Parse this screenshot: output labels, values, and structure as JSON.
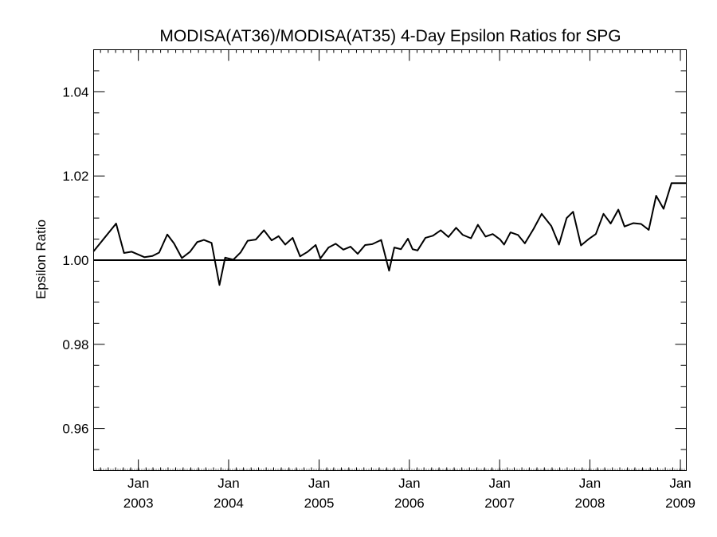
{
  "chart_data": {
    "type": "line",
    "title": "MODISA(AT36)/MODISA(AT35) 4-Day Epsilon Ratios for SPG",
    "xlabel": "",
    "ylabel": "Epsilon Ratio",
    "x_range": [
      "2002-07-04",
      "2009-01-25"
    ],
    "ylim": [
      0.95,
      1.05
    ],
    "y_ticks": [
      {
        "value": 0.96,
        "label": "0.96"
      },
      {
        "value": 0.98,
        "label": "0.98"
      },
      {
        "value": 1.0,
        "label": "1.00"
      },
      {
        "value": 1.02,
        "label": "1.02"
      },
      {
        "value": 1.04,
        "label": "1.04"
      }
    ],
    "x_ticks": [
      {
        "date": "2003-01-01",
        "month": "Jan",
        "year": "2003"
      },
      {
        "date": "2004-01-01",
        "month": "Jan",
        "year": "2004"
      },
      {
        "date": "2005-01-01",
        "month": "Jan",
        "year": "2005"
      },
      {
        "date": "2006-01-01",
        "month": "Jan",
        "year": "2006"
      },
      {
        "date": "2007-01-01",
        "month": "Jan",
        "year": "2007"
      },
      {
        "date": "2008-01-01",
        "month": "Jan",
        "year": "2008"
      },
      {
        "date": "2009-01-01",
        "month": "Jan",
        "year": "2009"
      }
    ],
    "reference_line": 1.0,
    "grid": false,
    "series": [
      {
        "x": [
          "2002-07-04",
          "2002-10-03",
          "2002-11-04",
          "2002-12-05",
          "2003-01-26",
          "2003-02-27",
          "2003-03-26",
          "2003-04-28",
          "2003-05-25",
          "2003-06-26",
          "2003-07-29",
          "2003-08-27",
          "2003-09-23",
          "2003-10-24",
          "2003-11-25",
          "2003-12-18",
          "2004-01-20",
          "2004-02-18",
          "2004-03-18",
          "2004-04-20",
          "2004-05-23",
          "2004-06-23",
          "2004-07-21",
          "2004-08-17",
          "2004-09-16",
          "2004-10-16",
          "2004-11-16",
          "2004-12-18",
          "2005-01-06",
          "2005-02-08",
          "2005-03-09",
          "2005-04-09",
          "2005-05-08",
          "2005-06-06",
          "2005-07-06",
          "2005-08-04",
          "2005-09-09",
          "2005-10-11",
          "2005-11-01",
          "2005-11-28",
          "2005-12-26",
          "2006-01-14",
          "2006-02-03",
          "2006-03-07",
          "2006-04-06",
          "2006-05-08",
          "2006-06-08",
          "2006-07-09",
          "2006-08-05",
          "2006-09-07",
          "2006-10-05",
          "2006-11-05",
          "2006-12-04",
          "2007-01-03",
          "2007-01-19",
          "2007-02-14",
          "2007-03-16",
          "2007-04-13",
          "2007-05-18",
          "2007-06-20",
          "2007-07-29",
          "2007-08-29",
          "2007-09-29",
          "2007-10-25",
          "2007-11-26",
          "2007-12-29",
          "2008-01-25",
          "2008-02-25",
          "2008-03-25",
          "2008-04-25",
          "2008-05-20",
          "2008-06-25",
          "2008-07-26",
          "2008-08-26",
          "2008-09-25",
          "2008-10-25",
          "2008-11-26",
          "2008-12-20",
          "2009-01-08",
          "2009-01-25"
        ],
        "y": [
          1.0021,
          1.0087,
          1.0017,
          1.002,
          1.0007,
          1.001,
          1.0018,
          1.0061,
          1.004,
          1.0005,
          1.002,
          1.0043,
          1.0048,
          1.0041,
          0.9941,
          1.0006,
          1.0001,
          1.0018,
          1.0046,
          1.0049,
          1.0071,
          1.0047,
          1.0057,
          1.0037,
          1.0053,
          1.0009,
          1.002,
          1.0036,
          1.0004,
          1.003,
          1.0039,
          1.0025,
          1.0032,
          1.0015,
          1.0036,
          1.0038,
          1.0048,
          0.9975,
          1.003,
          1.0026,
          1.0051,
          1.0026,
          1.0023,
          1.0053,
          1.0058,
          1.0071,
          1.0055,
          1.0077,
          1.006,
          1.0052,
          1.0084,
          1.0056,
          1.0062,
          1.0049,
          1.0037,
          1.0066,
          1.006,
          1.004,
          1.0074,
          1.011,
          1.0081,
          1.0037,
          1.01,
          1.0115,
          1.0035,
          1.0051,
          1.0062,
          1.011,
          1.0087,
          1.012,
          1.008,
          1.0088,
          1.0086,
          1.0072,
          1.0153,
          1.0122,
          1.0183,
          1.0183,
          1.0183,
          1.0183
        ]
      }
    ]
  }
}
